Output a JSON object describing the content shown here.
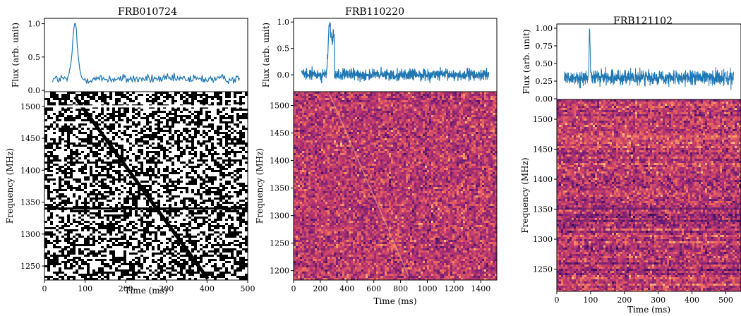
{
  "chart_data": [
    {
      "type": "line",
      "title": "FRB010724",
      "flux_panel": {
        "ylabel": "Flux (arb. unit)",
        "yticks": [
          "0.0",
          "0.5",
          "1.0"
        ],
        "ylim": [
          -0.02,
          1.08
        ],
        "pulse_peak_time_ms": 75,
        "pulse_peak_flux": 1.0,
        "baseline_flux": 0.17,
        "line_color": "#1f77b4"
      },
      "waterfall_panel": {
        "type": "heatmap",
        "xlabel": "Time (ms)",
        "ylabel": "Frequency (MHz)",
        "xticks": [
          "0",
          "100",
          "200",
          "300",
          "400",
          "500"
        ],
        "yticks": [
          "1250",
          "1300",
          "1350",
          "1400",
          "1450",
          "1500"
        ],
        "xlim": [
          0,
          500
        ],
        "ylim": [
          1228,
          1523
        ],
        "colormap": "binary",
        "sweep": {
          "start_time_ms": 75,
          "start_freq_mhz": 1515,
          "end_time_ms": 402,
          "end_freq_mhz": 1230
        },
        "rfi_lines_mhz": [
          1340,
          1500
        ]
      }
    },
    {
      "type": "line",
      "title": "FRB110220",
      "flux_panel": {
        "ylabel": "Flux (arb. unit)",
        "yticks": [
          "0.0",
          "0.5",
          "1.0"
        ],
        "ylim": [
          -0.32,
          1.07
        ],
        "pulse_peak_time_ms": 270,
        "pulse_peak_flux": 1.0,
        "baseline_flux": 0.0,
        "line_color": "#1f77b4"
      },
      "waterfall_panel": {
        "type": "heatmap",
        "xlabel": "Time (ms)",
        "ylabel": "Frequency (MHz)",
        "xticks": [
          "0",
          "200",
          "400",
          "600",
          "800",
          "1000",
          "1200",
          "1400"
        ],
        "yticks": [
          "1200",
          "1250",
          "1300",
          "1350",
          "1400",
          "1450",
          "1500"
        ],
        "xlim": [
          0,
          1520
        ],
        "ylim": [
          1183,
          1525
        ],
        "colormap": "magma",
        "sweep": {
          "start_time_ms": 270,
          "start_freq_mhz": 1520,
          "end_time_ms": 860,
          "end_freq_mhz": 1190
        }
      }
    },
    {
      "type": "line",
      "title": "FRB121102",
      "flux_panel": {
        "ylabel": "Flux (arb. unit)",
        "yticks": [
          "0.00",
          "0.25",
          "0.50",
          "0.75",
          "1.00"
        ],
        "ylim": [
          -0.01,
          1.06
        ],
        "pulse_peak_time_ms": 97,
        "pulse_peak_flux": 1.0,
        "baseline_flux": 0.3,
        "line_color": "#1f77b4"
      },
      "waterfall_panel": {
        "type": "heatmap",
        "xlabel": "Time (ms)",
        "ylabel": "Frequency (MHz)",
        "xticks": [
          "0",
          "100",
          "200",
          "300",
          "400",
          "500"
        ],
        "yticks": [
          "1250",
          "1300",
          "1350",
          "1400",
          "1450",
          "1500"
        ],
        "xlim": [
          0,
          545
        ],
        "ylim": [
          1213,
          1533
        ],
        "colormap": "magma",
        "rfi_bands_mhz": [
          1350,
          1330
        ]
      }
    }
  ]
}
